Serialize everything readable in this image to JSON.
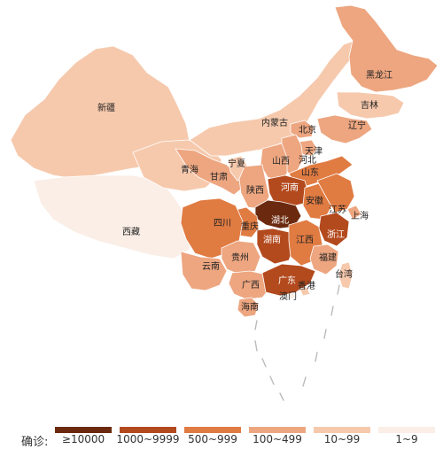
{
  "legend": {
    "title": "确诊:",
    "items": [
      {
        "label": "≥10000",
        "color": "#6b2a0f"
      },
      {
        "label": "1000~9999",
        "color": "#b34a1e"
      },
      {
        "label": "500~999",
        "color": "#e07b42"
      },
      {
        "label": "100~499",
        "color": "#eda680"
      },
      {
        "label": "10~99",
        "color": "#f6c9ad"
      },
      {
        "label": "1~9",
        "color": "#faeee6"
      }
    ]
  },
  "regions": [
    {
      "name": "新疆",
      "category": "10~99"
    },
    {
      "name": "西藏",
      "category": "1~9"
    },
    {
      "name": "青海",
      "category": "10~99"
    },
    {
      "name": "内蒙古",
      "category": "10~99"
    },
    {
      "name": "甘肃",
      "category": "100~499"
    },
    {
      "name": "宁夏",
      "category": "10~99"
    },
    {
      "name": "黑龙江",
      "category": "100~499"
    },
    {
      "name": "吉林",
      "category": "10~99"
    },
    {
      "name": "辽宁",
      "category": "100~499"
    },
    {
      "name": "北京",
      "category": "100~499"
    },
    {
      "name": "天津",
      "category": "100~499"
    },
    {
      "name": "河北",
      "category": "100~499"
    },
    {
      "name": "山西",
      "category": "100~499"
    },
    {
      "name": "山东",
      "category": "500~999"
    },
    {
      "name": "陕西",
      "category": "100~499"
    },
    {
      "name": "河南",
      "category": "1000~9999"
    },
    {
      "name": "安徽",
      "category": "500~999"
    },
    {
      "name": "江苏",
      "category": "500~999"
    },
    {
      "name": "上海",
      "category": "100~499"
    },
    {
      "name": "湖北",
      "category": "≥10000"
    },
    {
      "name": "重庆",
      "category": "500~999"
    },
    {
      "name": "四川",
      "category": "500~999"
    },
    {
      "name": "湖南",
      "category": "1000~9999"
    },
    {
      "name": "江西",
      "category": "500~999"
    },
    {
      "name": "浙江",
      "category": "1000~9999"
    },
    {
      "name": "贵州",
      "category": "100~499"
    },
    {
      "name": "云南",
      "category": "100~499"
    },
    {
      "name": "福建",
      "category": "100~499"
    },
    {
      "name": "台湾",
      "category": "10~99"
    },
    {
      "name": "广西",
      "category": "100~499"
    },
    {
      "name": "广东",
      "category": "1000~9999"
    },
    {
      "name": "香港",
      "category": "10~99"
    },
    {
      "name": "澳门",
      "category": "1~9"
    },
    {
      "name": "海南",
      "category": "100~499"
    }
  ]
}
